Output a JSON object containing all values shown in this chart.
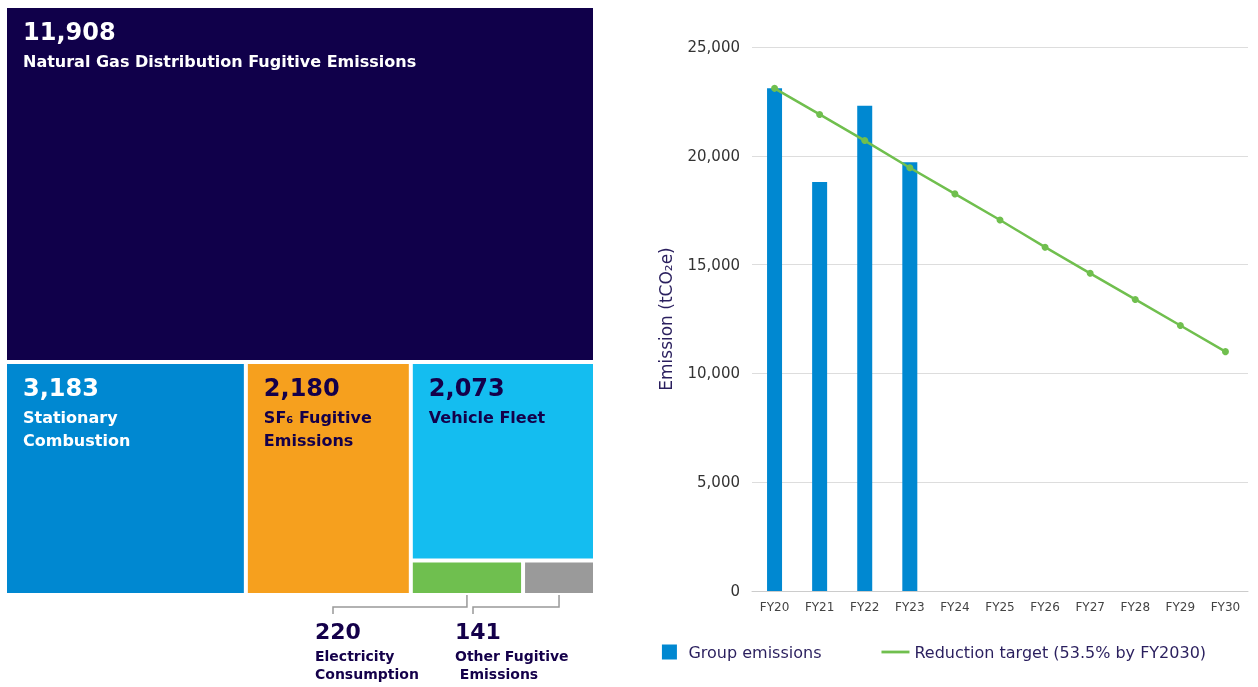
{
  "chart_data": [
    {
      "type": "other",
      "categories": [
        "Natural Gas Distribution Fugitive Emissions",
        "Stationary Combustion",
        "SF₆ Fugitive Emissions",
        "Vehicle Fleet",
        "Electricity Consumption",
        "Other Fugitive Emissions"
      ],
      "values": [
        11908,
        3183,
        2180,
        2073,
        220,
        141
      ],
      "value_labels": [
        "11,908",
        "3,183",
        "2,180",
        "2,073",
        "220",
        "141"
      ],
      "colors": [
        "#10004a",
        "#0088d1",
        "#f6a01e",
        "#14bdf0",
        "#6fbf4f",
        "#9a9a9a"
      ]
    },
    {
      "type": "bar",
      "categories": [
        "FY20",
        "FY21",
        "FY22",
        "FY23",
        "FY24",
        "FY25",
        "FY26",
        "FY27",
        "FY28",
        "FY29",
        "FY30"
      ],
      "ylabel": "Emission (tCO₂e)",
      "ylim": [
        0,
        25000
      ],
      "yticks": [
        {
          "value": 0,
          "label": "0"
        },
        {
          "value": 5000,
          "label": "5,000"
        },
        {
          "value": 10000,
          "label": "10,000"
        },
        {
          "value": 15000,
          "label": "15,000"
        },
        {
          "value": 20000,
          "label": "20,000"
        },
        {
          "value": 25000,
          "label": "25,000"
        }
      ],
      "grid": "y",
      "legend": "bottom",
      "marker": "circle",
      "series": [
        {
          "name": "Group emissions",
          "type": "bar",
          "color": "#0088d1",
          "values": [
            23100,
            18800,
            22300,
            19700,
            null,
            null,
            null,
            null,
            null,
            null,
            null
          ]
        },
        {
          "name": "Reduction target (53.5% by FY2030)",
          "type": "line",
          "color": "#70bf4e",
          "values": [
            23100,
            21900,
            20700,
            19450,
            18250,
            17050,
            15800,
            14600,
            13400,
            12200,
            11000
          ]
        }
      ]
    }
  ]
}
